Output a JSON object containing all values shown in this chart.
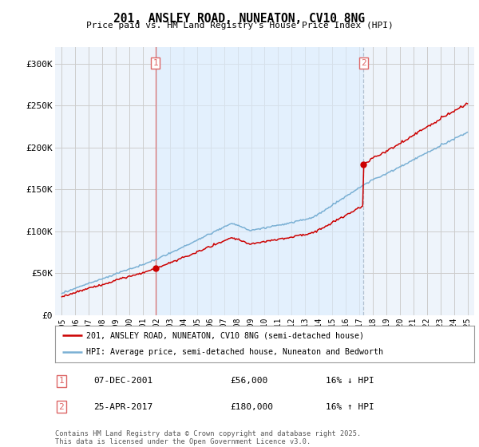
{
  "title": "201, ANSLEY ROAD, NUNEATON, CV10 8NG",
  "subtitle": "Price paid vs. HM Land Registry's House Price Index (HPI)",
  "ylabel_ticks": [
    "£0",
    "£50K",
    "£100K",
    "£150K",
    "£200K",
    "£250K",
    "£300K"
  ],
  "ytick_values": [
    0,
    50000,
    100000,
    150000,
    200000,
    250000,
    300000
  ],
  "ylim": [
    0,
    320000
  ],
  "xlim_start": 1994.5,
  "xlim_end": 2025.5,
  "purchase1": {
    "date_x": 2001.92,
    "price": 56000,
    "label": "1"
  },
  "purchase2": {
    "date_x": 2017.32,
    "price": 180000,
    "label": "2"
  },
  "red_color": "#cc0000",
  "blue_color": "#7ab0d4",
  "shade_color": "#ddeeff",
  "grid_color": "#cccccc",
  "background_color": "#eef4fb",
  "vline1_color": "#dd6666",
  "vline2_color": "#aabbcc",
  "legend1_text": "201, ANSLEY ROAD, NUNEATON, CV10 8NG (semi-detached house)",
  "legend2_text": "HPI: Average price, semi-detached house, Nuneaton and Bedworth",
  "annotation1": [
    "1",
    "07-DEC-2001",
    "£56,000",
    "16% ↓ HPI"
  ],
  "annotation2": [
    "2",
    "25-APR-2017",
    "£180,000",
    "16% ↑ HPI"
  ],
  "footer": "Contains HM Land Registry data © Crown copyright and database right 2025.\nThis data is licensed under the Open Government Licence v3.0.",
  "xticks": [
    1995,
    1996,
    1997,
    1998,
    1999,
    2000,
    2001,
    2002,
    2003,
    2004,
    2005,
    2006,
    2007,
    2008,
    2009,
    2010,
    2011,
    2012,
    2013,
    2014,
    2015,
    2016,
    2017,
    2018,
    2019,
    2020,
    2021,
    2022,
    2023,
    2024,
    2025
  ]
}
